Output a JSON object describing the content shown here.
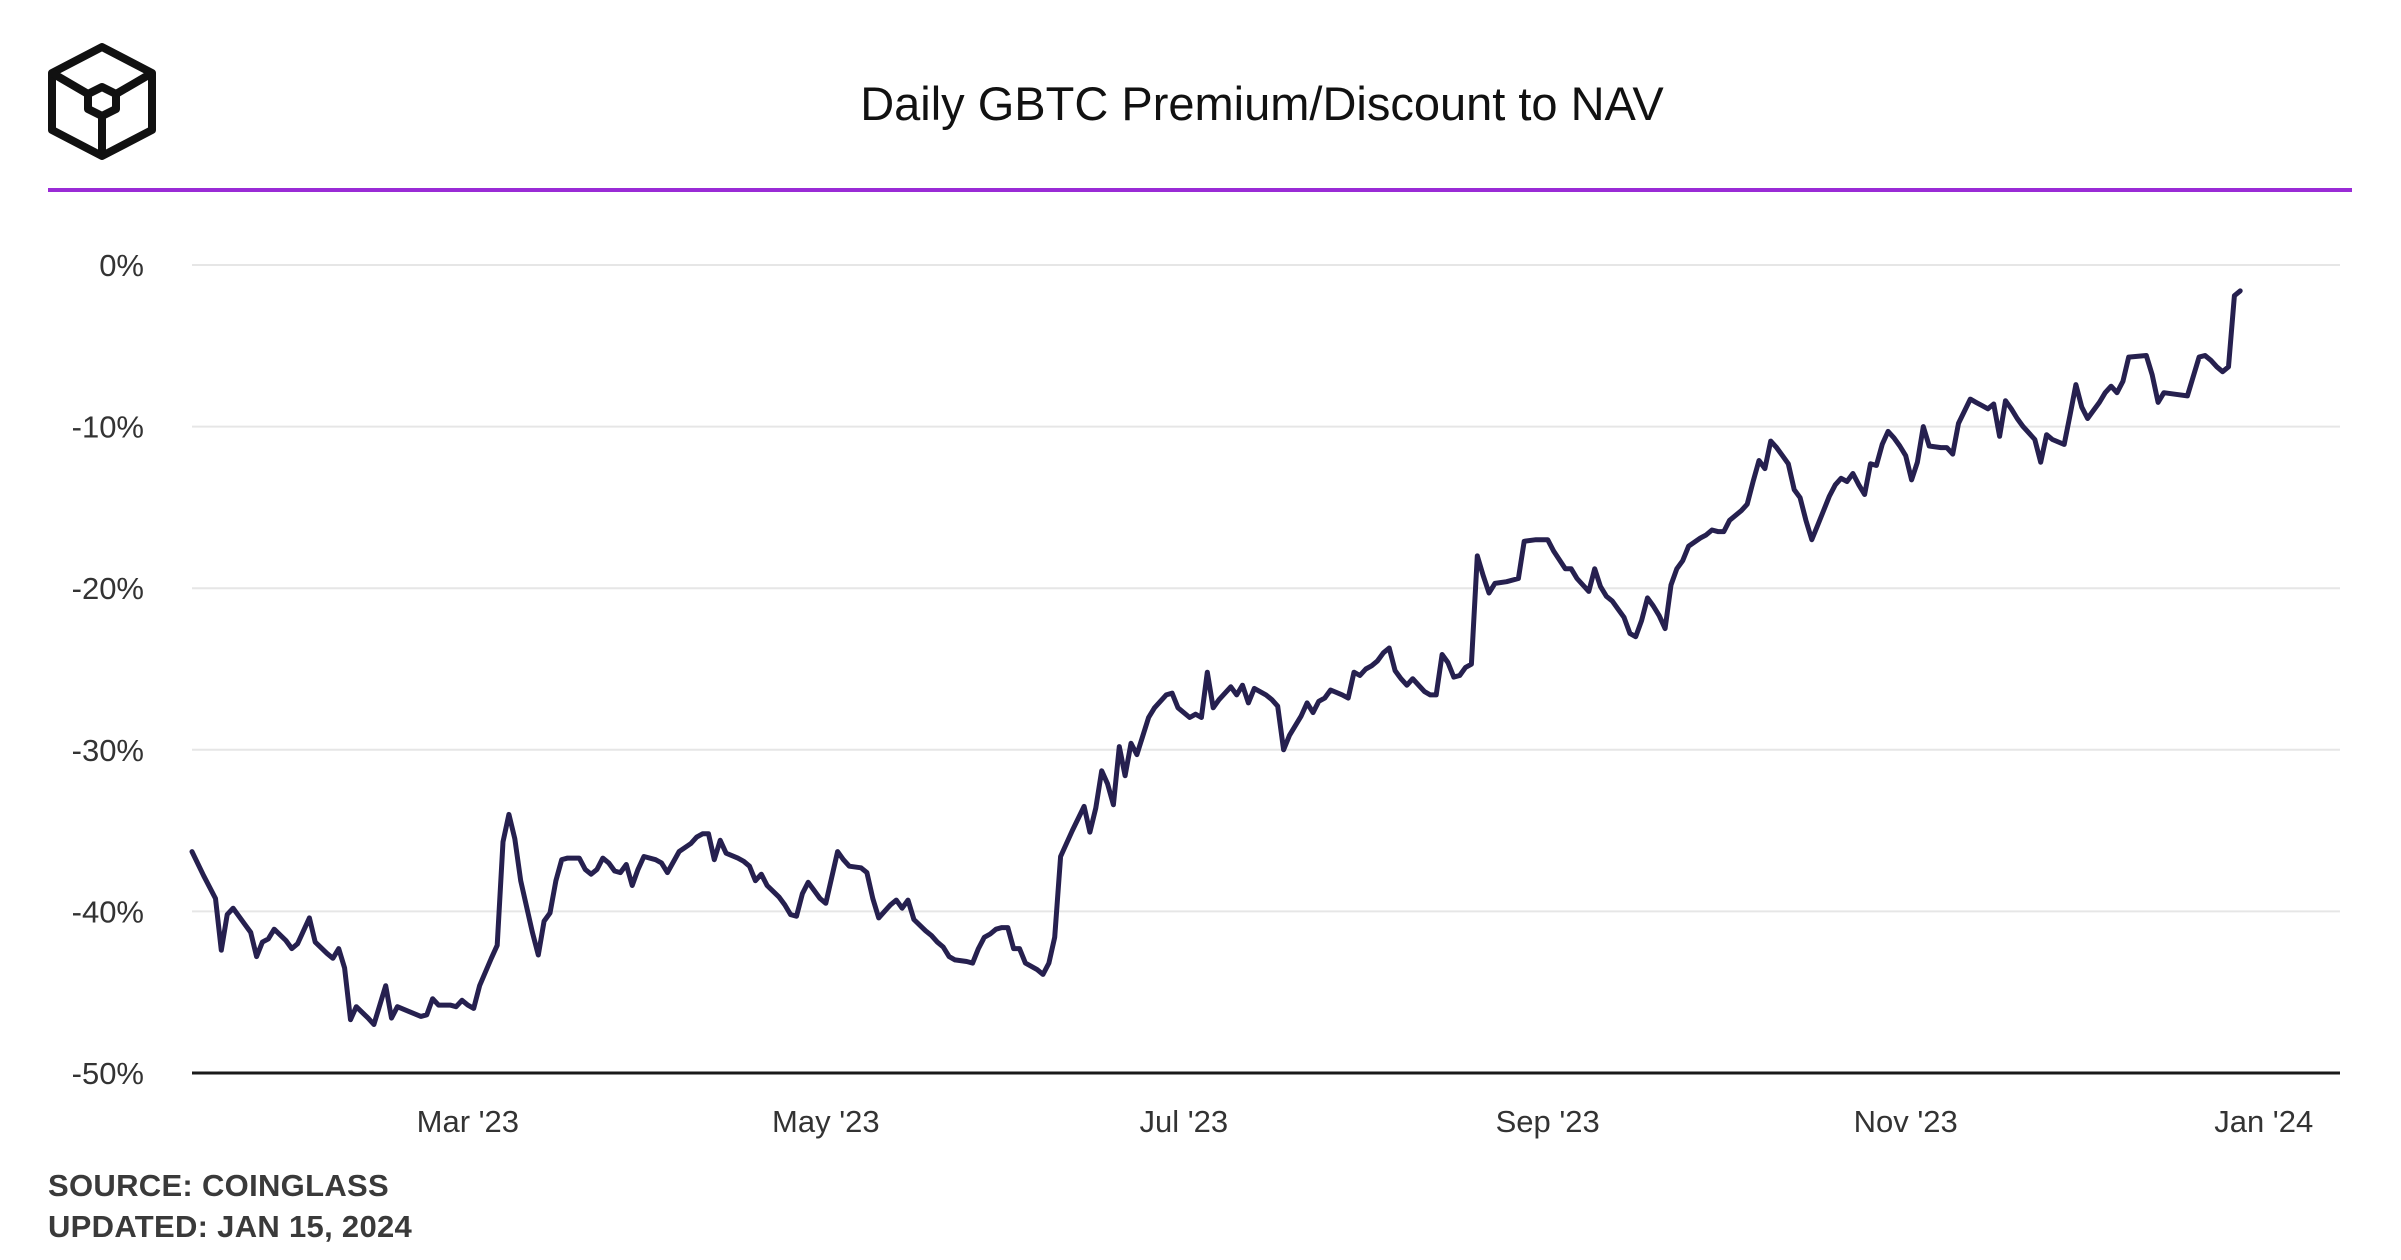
{
  "colors": {
    "accent": "#9a2bd6",
    "line": "#26204f",
    "grid": "#e6e6e6",
    "axis": "#1a1a1a",
    "text": "#333333"
  },
  "logo": {
    "icon": "cube-logo-icon"
  },
  "footer": {
    "source": "SOURCE: COINGLASS",
    "updated": "UPDATED: JAN 15, 2024"
  },
  "chart_data": {
    "type": "line",
    "title": "Daily GBTC Premium/Discount to NAV",
    "xlabel": "",
    "ylabel": "",
    "y_unit": "%",
    "ylim": [
      -50,
      0
    ],
    "yticks": [
      0,
      -10,
      -20,
      -30,
      -40,
      -50
    ],
    "ytick_labels": [
      "0%",
      "-10%",
      "-20%",
      "-30%",
      "-40%",
      "-50%"
    ],
    "xlim": [
      0,
      366
    ],
    "xticks": [
      {
        "label": "Mar '23",
        "x": 47
      },
      {
        "label": "May '23",
        "x": 108
      },
      {
        "label": "Jul '23",
        "x": 169
      },
      {
        "label": "Sep '23",
        "x": 231
      },
      {
        "label": "Nov '23",
        "x": 292
      },
      {
        "label": "Jan '24",
        "x": 353
      }
    ],
    "x_unit": "days since Jan 13, 2023",
    "grid": true,
    "series": [
      {
        "name": "GBTC Premium/Discount",
        "points": [
          [
            0,
            -36.3
          ],
          [
            2,
            -37.8
          ],
          [
            4,
            -39.2
          ],
          [
            5,
            -42.4
          ],
          [
            6,
            -40.2
          ],
          [
            7,
            -39.8
          ],
          [
            9,
            -40.8
          ],
          [
            10,
            -41.3
          ],
          [
            11,
            -42.8
          ],
          [
            12,
            -41.9
          ],
          [
            13,
            -41.7
          ],
          [
            14,
            -41.1
          ],
          [
            16,
            -41.8
          ],
          [
            17,
            -42.3
          ],
          [
            18,
            -42.0
          ],
          [
            20,
            -40.4
          ],
          [
            21,
            -41.9
          ],
          [
            23,
            -42.6
          ],
          [
            24,
            -42.9
          ],
          [
            25,
            -42.3
          ],
          [
            26,
            -43.5
          ],
          [
            27,
            -46.7
          ],
          [
            28,
            -45.9
          ],
          [
            30,
            -46.6
          ],
          [
            31,
            -47.0
          ],
          [
            33,
            -44.6
          ],
          [
            34,
            -46.6
          ],
          [
            35,
            -45.9
          ],
          [
            37,
            -46.2
          ],
          [
            39,
            -46.5
          ],
          [
            40,
            -46.4
          ],
          [
            41,
            -45.4
          ],
          [
            42,
            -45.8
          ],
          [
            44,
            -45.8
          ],
          [
            45,
            -45.9
          ],
          [
            46,
            -45.5
          ],
          [
            47,
            -45.8
          ],
          [
            48,
            -46.0
          ],
          [
            49,
            -44.6
          ],
          [
            51,
            -42.9
          ],
          [
            52,
            -42.1
          ],
          [
            53,
            -35.7
          ],
          [
            54,
            -34.0
          ],
          [
            55,
            -35.5
          ],
          [
            56,
            -38.1
          ],
          [
            58,
            -41.3
          ],
          [
            59,
            -42.7
          ],
          [
            60,
            -40.6
          ],
          [
            61,
            -40.1
          ],
          [
            62,
            -38.1
          ],
          [
            63,
            -36.8
          ],
          [
            64,
            -36.7
          ],
          [
            66,
            -36.7
          ],
          [
            67,
            -37.4
          ],
          [
            68,
            -37.7
          ],
          [
            69,
            -37.4
          ],
          [
            70,
            -36.7
          ],
          [
            71,
            -37.0
          ],
          [
            72,
            -37.5
          ],
          [
            73,
            -37.6
          ],
          [
            74,
            -37.1
          ],
          [
            75,
            -38.4
          ],
          [
            76,
            -37.4
          ],
          [
            77,
            -36.6
          ],
          [
            79,
            -36.8
          ],
          [
            80,
            -37.0
          ],
          [
            81,
            -37.6
          ],
          [
            83,
            -36.3
          ],
          [
            85,
            -35.8
          ],
          [
            86,
            -35.4
          ],
          [
            87,
            -35.2
          ],
          [
            88,
            -35.2
          ],
          [
            89,
            -36.8
          ],
          [
            90,
            -35.6
          ],
          [
            91,
            -36.4
          ],
          [
            93,
            -36.7
          ],
          [
            94,
            -36.9
          ],
          [
            95,
            -37.2
          ],
          [
            96,
            -38.1
          ],
          [
            97,
            -37.7
          ],
          [
            98,
            -38.4
          ],
          [
            100,
            -39.1
          ],
          [
            101,
            -39.6
          ],
          [
            102,
            -40.2
          ],
          [
            103,
            -40.3
          ],
          [
            104,
            -38.9
          ],
          [
            105,
            -38.2
          ],
          [
            106,
            -38.7
          ],
          [
            107,
            -39.2
          ],
          [
            108,
            -39.5
          ],
          [
            110,
            -36.3
          ],
          [
            111,
            -36.8
          ],
          [
            112,
            -37.2
          ],
          [
            114,
            -37.3
          ],
          [
            115,
            -37.6
          ],
          [
            116,
            -39.2
          ],
          [
            117,
            -40.4
          ],
          [
            118,
            -40.0
          ],
          [
            119,
            -39.6
          ],
          [
            120,
            -39.3
          ],
          [
            121,
            -39.8
          ],
          [
            122,
            -39.3
          ],
          [
            123,
            -40.5
          ],
          [
            125,
            -41.2
          ],
          [
            126,
            -41.5
          ],
          [
            127,
            -41.9
          ],
          [
            128,
            -42.2
          ],
          [
            129,
            -42.8
          ],
          [
            130,
            -43.0
          ],
          [
            132,
            -43.1
          ],
          [
            133,
            -43.2
          ],
          [
            134,
            -42.3
          ],
          [
            135,
            -41.6
          ],
          [
            136,
            -41.4
          ],
          [
            137,
            -41.1
          ],
          [
            138,
            -41.0
          ],
          [
            139,
            -41.0
          ],
          [
            140,
            -42.3
          ],
          [
            141,
            -42.3
          ],
          [
            142,
            -43.2
          ],
          [
            144,
            -43.6
          ],
          [
            145,
            -43.9
          ],
          [
            146,
            -43.2
          ],
          [
            147,
            -41.6
          ],
          [
            148,
            -36.6
          ],
          [
            150,
            -35.0
          ],
          [
            152,
            -33.5
          ],
          [
            153,
            -35.1
          ],
          [
            154,
            -33.6
          ],
          [
            155,
            -31.3
          ],
          [
            156,
            -32.1
          ],
          [
            157,
            -33.4
          ],
          [
            158,
            -29.8
          ],
          [
            159,
            -31.6
          ],
          [
            160,
            -29.6
          ],
          [
            161,
            -30.3
          ],
          [
            163,
            -28.0
          ],
          [
            164,
            -27.4
          ],
          [
            166,
            -26.6
          ],
          [
            167,
            -26.5
          ],
          [
            168,
            -27.4
          ],
          [
            170,
            -28.0
          ],
          [
            171,
            -27.8
          ],
          [
            172,
            -28.0
          ],
          [
            173,
            -25.2
          ],
          [
            174,
            -27.4
          ],
          [
            175,
            -26.9
          ],
          [
            177,
            -26.1
          ],
          [
            178,
            -26.6
          ],
          [
            179,
            -26.0
          ],
          [
            180,
            -27.1
          ],
          [
            181,
            -26.2
          ],
          [
            183,
            -26.6
          ],
          [
            184,
            -26.9
          ],
          [
            185,
            -27.3
          ],
          [
            186,
            -30.0
          ],
          [
            187,
            -29.1
          ],
          [
            189,
            -27.9
          ],
          [
            190,
            -27.1
          ],
          [
            191,
            -27.7
          ],
          [
            192,
            -27.0
          ],
          [
            193,
            -26.8
          ],
          [
            194,
            -26.3
          ],
          [
            196,
            -26.6
          ],
          [
            197,
            -26.8
          ],
          [
            198,
            -25.2
          ],
          [
            199,
            -25.4
          ],
          [
            200,
            -25.0
          ],
          [
            201,
            -24.8
          ],
          [
            202,
            -24.5
          ],
          [
            203,
            -24.0
          ],
          [
            204,
            -23.7
          ],
          [
            205,
            -25.1
          ],
          [
            206,
            -25.6
          ],
          [
            207,
            -26.0
          ],
          [
            208,
            -25.6
          ],
          [
            209,
            -26.0
          ],
          [
            210,
            -26.4
          ],
          [
            211,
            -26.6
          ],
          [
            212,
            -26.6
          ],
          [
            213,
            -24.1
          ],
          [
            214,
            -24.6
          ],
          [
            215,
            -25.5
          ],
          [
            216,
            -25.4
          ],
          [
            217,
            -24.9
          ],
          [
            218,
            -24.7
          ],
          [
            219,
            -18.0
          ],
          [
            220,
            -19.2
          ],
          [
            221,
            -20.3
          ],
          [
            222,
            -19.7
          ],
          [
            224,
            -19.6
          ],
          [
            226,
            -19.4
          ],
          [
            227,
            -17.1
          ],
          [
            229,
            -17.0
          ],
          [
            231,
            -17.0
          ],
          [
            232,
            -17.7
          ],
          [
            234,
            -18.8
          ],
          [
            235,
            -18.8
          ],
          [
            236,
            -19.4
          ],
          [
            237,
            -19.8
          ],
          [
            238,
            -20.2
          ],
          [
            239,
            -18.8
          ],
          [
            240,
            -19.9
          ],
          [
            241,
            -20.5
          ],
          [
            242,
            -20.8
          ],
          [
            243,
            -21.3
          ],
          [
            244,
            -21.8
          ],
          [
            245,
            -22.8
          ],
          [
            246,
            -23.0
          ],
          [
            247,
            -22.0
          ],
          [
            248,
            -20.6
          ],
          [
            249,
            -21.1
          ],
          [
            250,
            -21.7
          ],
          [
            251,
            -22.5
          ],
          [
            252,
            -19.8
          ],
          [
            253,
            -18.8
          ],
          [
            254,
            -18.3
          ],
          [
            255,
            -17.4
          ],
          [
            257,
            -16.9
          ],
          [
            258,
            -16.7
          ],
          [
            259,
            -16.4
          ],
          [
            260,
            -16.5
          ],
          [
            261,
            -16.5
          ],
          [
            262,
            -15.8
          ],
          [
            264,
            -15.2
          ],
          [
            265,
            -14.8
          ],
          [
            266,
            -13.4
          ],
          [
            267,
            -12.1
          ],
          [
            268,
            -12.6
          ],
          [
            269,
            -10.9
          ],
          [
            270,
            -11.3
          ],
          [
            271,
            -11.8
          ],
          [
            272,
            -12.3
          ],
          [
            273,
            -13.9
          ],
          [
            274,
            -14.4
          ],
          [
            275,
            -15.8
          ],
          [
            276,
            -17.0
          ],
          [
            277,
            -16.1
          ],
          [
            279,
            -14.3
          ],
          [
            280,
            -13.6
          ],
          [
            281,
            -13.2
          ],
          [
            282,
            -13.4
          ],
          [
            283,
            -12.9
          ],
          [
            284,
            -13.6
          ],
          [
            285,
            -14.2
          ],
          [
            286,
            -12.3
          ],
          [
            287,
            -12.4
          ],
          [
            288,
            -11.1
          ],
          [
            289,
            -10.3
          ],
          [
            290,
            -10.7
          ],
          [
            291,
            -11.2
          ],
          [
            292,
            -11.8
          ],
          [
            293,
            -13.3
          ],
          [
            294,
            -12.2
          ],
          [
            295,
            -10.0
          ],
          [
            296,
            -11.2
          ],
          [
            298,
            -11.3
          ],
          [
            299,
            -11.3
          ],
          [
            300,
            -11.7
          ],
          [
            301,
            -9.8
          ],
          [
            303,
            -8.3
          ],
          [
            304,
            -8.5
          ],
          [
            305,
            -8.7
          ],
          [
            306,
            -8.9
          ],
          [
            307,
            -8.6
          ],
          [
            308,
            -10.6
          ],
          [
            309,
            -8.4
          ],
          [
            310,
            -8.9
          ],
          [
            311,
            -9.5
          ],
          [
            312,
            -10.0
          ],
          [
            313,
            -10.4
          ],
          [
            314,
            -10.8
          ],
          [
            315,
            -12.2
          ],
          [
            316,
            -10.5
          ],
          [
            317,
            -10.8
          ],
          [
            319,
            -11.1
          ],
          [
            320,
            -9.3
          ],
          [
            321,
            -7.4
          ],
          [
            322,
            -8.8
          ],
          [
            323,
            -9.5
          ],
          [
            324,
            -9.0
          ],
          [
            325,
            -8.5
          ],
          [
            326,
            -7.9
          ],
          [
            327,
            -7.5
          ],
          [
            328,
            -7.9
          ],
          [
            329,
            -7.2
          ],
          [
            330,
            -5.7
          ],
          [
            333,
            -5.6
          ],
          [
            334,
            -6.8
          ],
          [
            335,
            -8.5
          ],
          [
            336,
            -7.9
          ],
          [
            338,
            -8.0
          ],
          [
            340,
            -8.1
          ],
          [
            342,
            -5.7
          ],
          [
            343,
            -5.6
          ],
          [
            344,
            -5.9
          ],
          [
            345,
            -6.3
          ],
          [
            346,
            -6.6
          ],
          [
            347,
            -6.3
          ],
          [
            348,
            -1.9
          ],
          [
            349,
            -1.6
          ]
        ]
      }
    ]
  }
}
